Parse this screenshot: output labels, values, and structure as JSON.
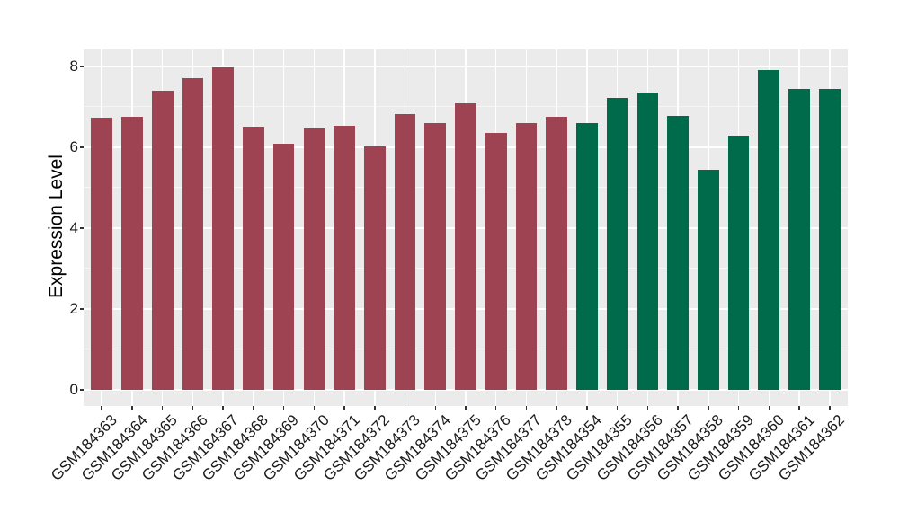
{
  "page": {
    "background": "#FFFFFF"
  },
  "chart_data": {
    "type": "bar",
    "title": "",
    "xlabel": "",
    "ylabel": "Expression Level",
    "legend_position": "none",
    "grid": "on",
    "panel_background": "#EBEBEB",
    "gridline_color": "#FFFFFF",
    "axis_text_color": "#1A1A1A",
    "tick_mark_color": "#333333",
    "x_label_rotation_deg": 45,
    "ylim": [
      -0.4,
      8.42
    ],
    "y_ticks": [
      0,
      2,
      4,
      6,
      8
    ],
    "y_minor_gridlines": [
      1,
      3,
      5,
      7
    ],
    "categories": [
      "GSM184363",
      "GSM184364",
      "GSM184365",
      "GSM184366",
      "GSM184367",
      "GSM184368",
      "GSM184369",
      "GSM184370",
      "GSM184371",
      "GSM184372",
      "GSM184373",
      "GSM184374",
      "GSM184375",
      "GSM184376",
      "GSM184377",
      "GSM184378",
      "GSM184354",
      "GSM184355",
      "GSM184356",
      "GSM184357",
      "GSM184358",
      "GSM184359",
      "GSM184360",
      "GSM184361",
      "GSM184362"
    ],
    "values": [
      6.73,
      6.75,
      7.39,
      7.71,
      7.97,
      6.51,
      6.09,
      6.47,
      6.53,
      6.03,
      6.81,
      6.59,
      7.08,
      6.35,
      6.6,
      6.75,
      6.59,
      7.21,
      7.36,
      6.77,
      5.44,
      6.29,
      7.9,
      7.45,
      7.44
    ],
    "bar_groups": [
      "left_group",
      "left_group",
      "left_group",
      "left_group",
      "left_group",
      "left_group",
      "left_group",
      "left_group",
      "left_group",
      "left_group",
      "left_group",
      "left_group",
      "left_group",
      "left_group",
      "left_group",
      "left_group",
      "right_group",
      "right_group",
      "right_group",
      "right_group",
      "right_group",
      "right_group",
      "right_group",
      "right_group",
      "right_group"
    ],
    "group_colors": {
      "left_group": "#9E4352",
      "right_group": "#006B4A"
    }
  }
}
